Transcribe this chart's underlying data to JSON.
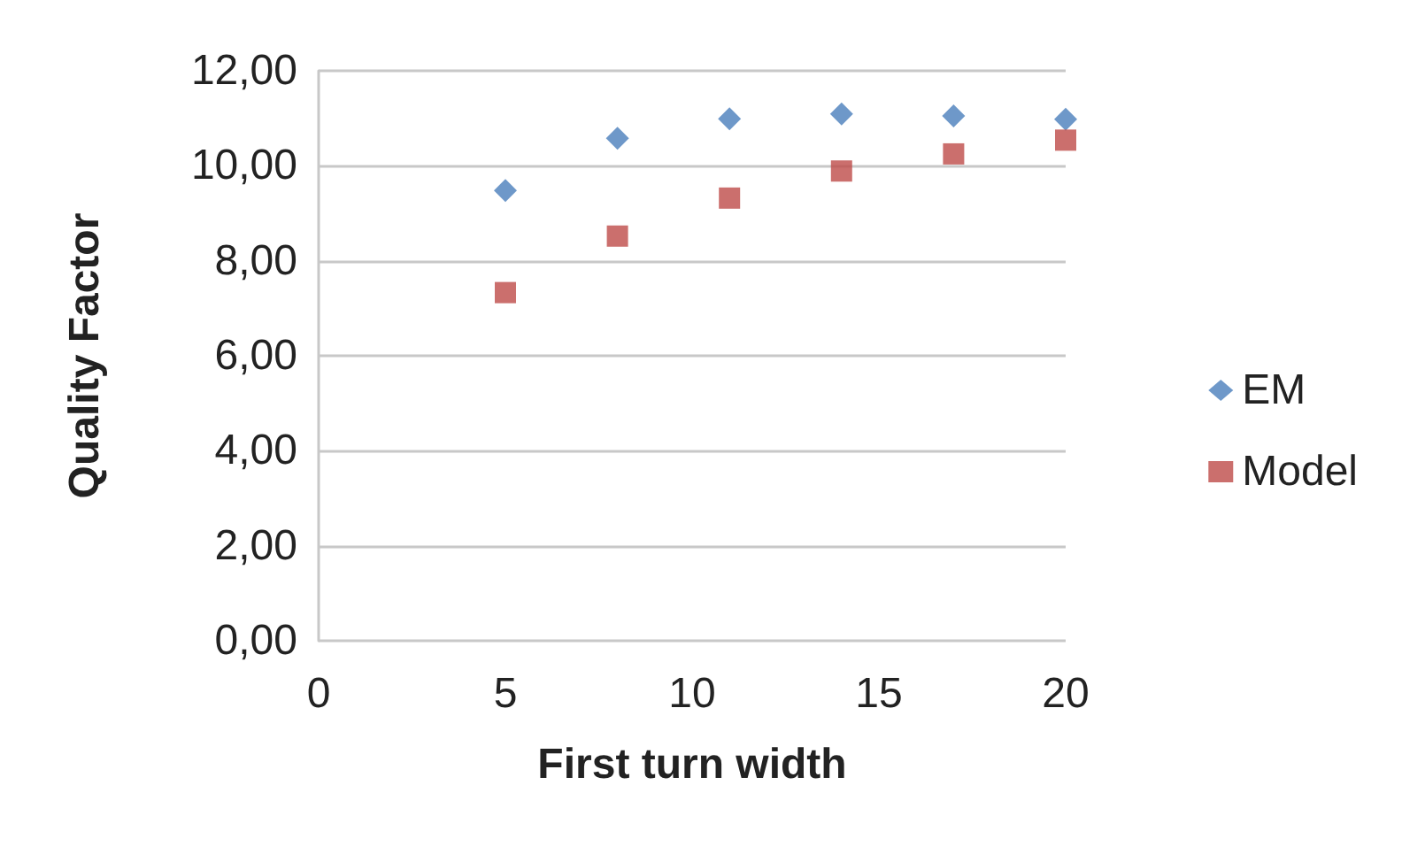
{
  "chart_data": {
    "type": "scatter",
    "xlabel": "First turn width",
    "ylabel": "Quality Factor",
    "x": [
      5,
      8,
      11,
      14,
      17,
      20
    ],
    "series": [
      {
        "name": "EM",
        "color": "#4a7ebb",
        "marker": "diamond",
        "values": [
          9.48,
          10.58,
          10.99,
          11.09,
          11.05,
          10.98
        ]
      },
      {
        "name": "Model",
        "color": "#be4b48",
        "marker": "square",
        "values": [
          7.33,
          8.52,
          9.32,
          9.89,
          10.25,
          10.54
        ]
      }
    ],
    "xlim": [
      0,
      20
    ],
    "xticks": [
      0,
      5,
      10,
      15,
      20
    ],
    "ylim": [
      0,
      12
    ],
    "yticks": [
      {
        "value": 0,
        "label": "0,00"
      },
      {
        "value": 2,
        "label": "2,00"
      },
      {
        "value": 4,
        "label": "4,00"
      },
      {
        "value": 6,
        "label": "6,00"
      },
      {
        "value": 8,
        "label": "8,00"
      },
      {
        "value": 10,
        "label": "10,00"
      },
      {
        "value": 12,
        "label": "12,00"
      }
    ],
    "grid": "y",
    "legend": "right"
  }
}
